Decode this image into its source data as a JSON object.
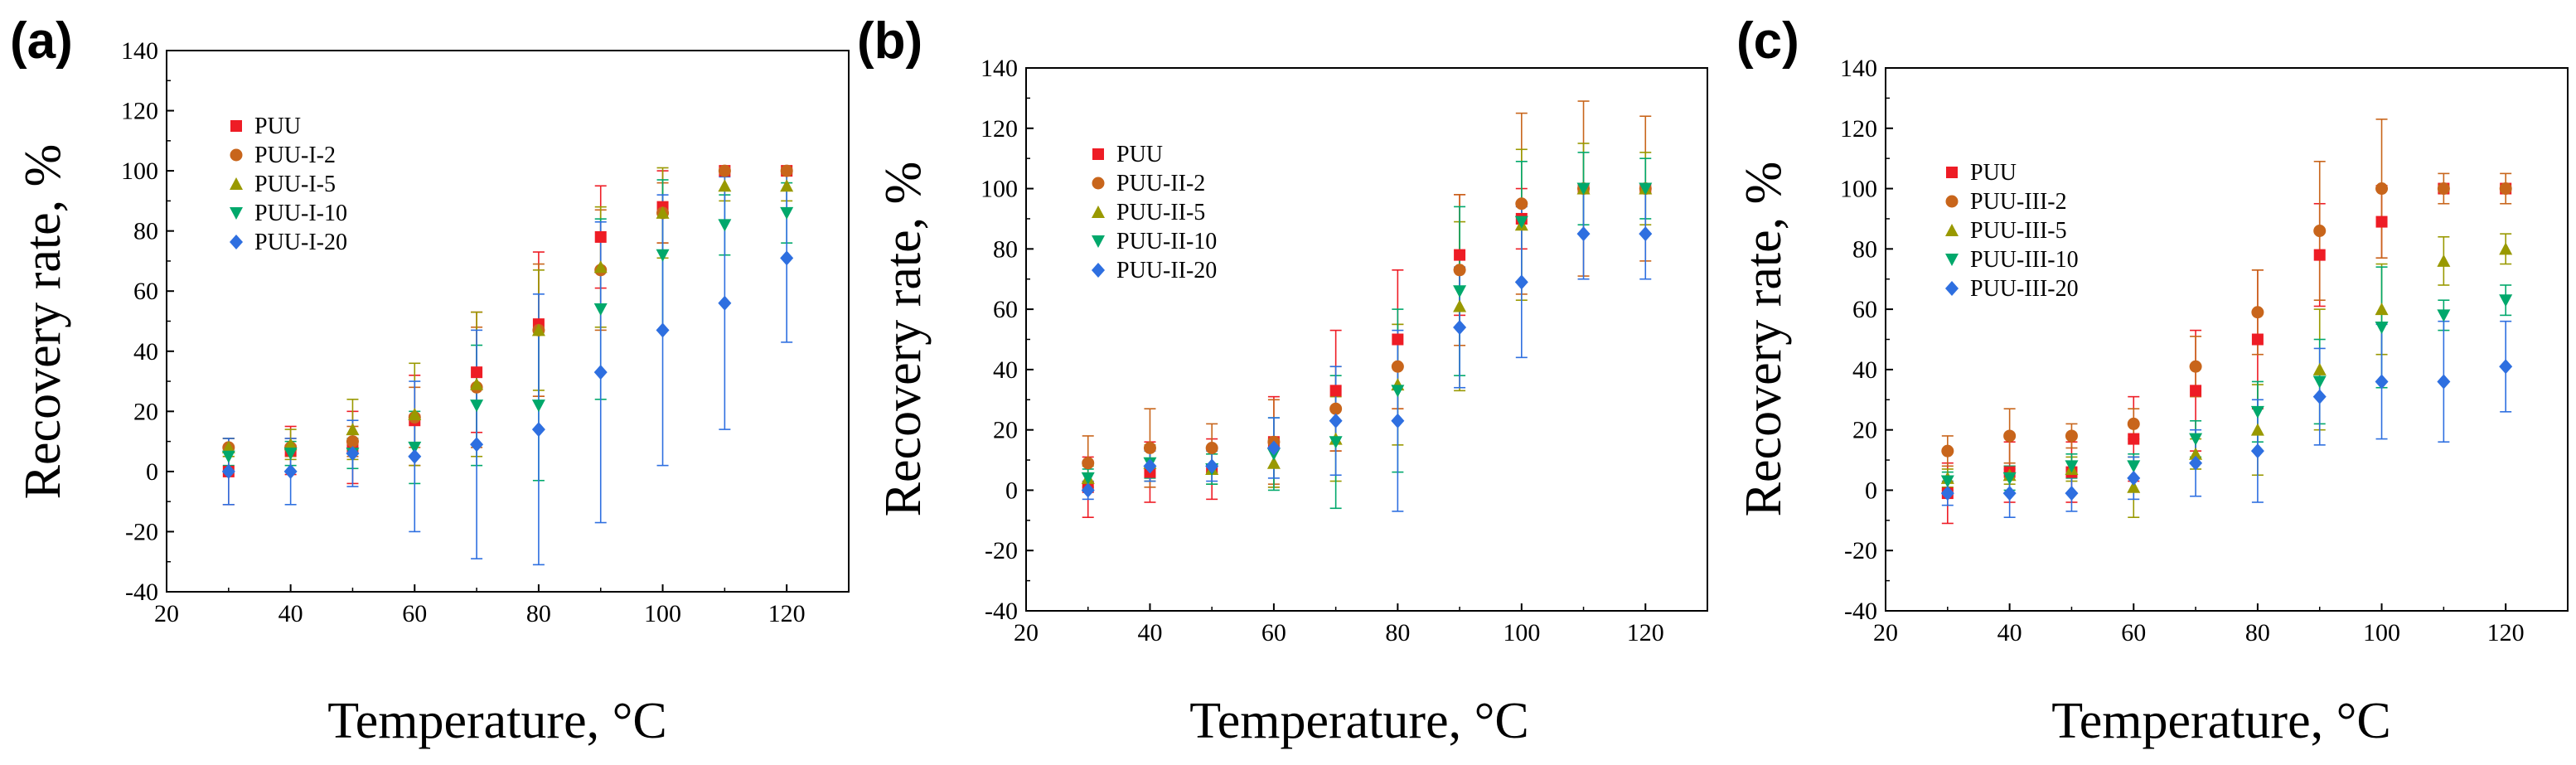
{
  "figure": {
    "series_colors": {
      "PUU": "#ee1c25",
      "PUU-2": "#c8651b",
      "PUU-5": "#999900",
      "PUU-10": "#00a86b",
      "PUU-20": "#2e6fe0"
    }
  },
  "chart_data": [
    {
      "panel": "(a)",
      "type": "scatter",
      "xlabel": "Temperature, °C",
      "ylabel": "Recovery rate, %",
      "xlim": [
        20,
        130
      ],
      "ylim": [
        -40,
        140
      ],
      "xticks": [
        20,
        40,
        60,
        80,
        100,
        120
      ],
      "yticks": [
        -40,
        -20,
        0,
        20,
        40,
        60,
        80,
        100,
        120,
        140
      ],
      "x": [
        30,
        40,
        50,
        60,
        70,
        80,
        90,
        100,
        110,
        120
      ],
      "legend_position": "upper-left",
      "series": [
        {
          "name": "PUU",
          "marker": "square",
          "color": "#ee1c25",
          "values": [
            0,
            7,
            8,
            17,
            33,
            49,
            78,
            88,
            100,
            100
          ],
          "errors": [
            11,
            8,
            12,
            15,
            20,
            24,
            17,
            12,
            0,
            0
          ]
        },
        {
          "name": "PUU-I-2",
          "marker": "circle",
          "color": "#c8651b",
          "values": [
            8,
            8,
            10,
            18,
            28,
            47,
            67,
            86,
            100,
            100
          ],
          "errors": [
            3,
            3,
            5,
            10,
            20,
            22,
            20,
            10,
            0,
            0
          ]
        },
        {
          "name": "PUU-I-5",
          "marker": "triangle-up",
          "color": "#999900",
          "values": [
            8,
            9,
            14,
            19,
            29,
            47,
            68,
            86,
            95,
            95
          ],
          "errors": [
            3,
            5,
            10,
            17,
            24,
            20,
            20,
            15,
            5,
            5
          ]
        },
        {
          "name": "PUU-I-10",
          "marker": "triangle-down",
          "color": "#00a86b",
          "values": [
            5,
            6,
            6,
            8,
            22,
            22,
            54,
            72,
            82,
            86
          ],
          "errors": [
            3,
            4,
            5,
            12,
            20,
            25,
            30,
            25,
            10,
            10
          ]
        },
        {
          "name": "PUU-I-20",
          "marker": "diamond",
          "color": "#2e6fe0",
          "values": [
            0,
            0,
            6,
            5,
            9,
            14,
            33,
            47,
            56,
            71
          ],
          "errors": [
            11,
            11,
            11,
            25,
            38,
            45,
            50,
            45,
            42,
            28
          ]
        }
      ]
    },
    {
      "panel": "(b)",
      "type": "scatter",
      "xlabel": "Temperature, °C",
      "ylabel": "Recovery rate, %",
      "xlim": [
        20,
        130
      ],
      "ylim": [
        -40,
        140
      ],
      "xticks": [
        20,
        40,
        60,
        80,
        100,
        120
      ],
      "yticks": [
        -40,
        -20,
        0,
        20,
        40,
        60,
        80,
        100,
        120,
        140
      ],
      "x": [
        30,
        40,
        50,
        60,
        70,
        80,
        90,
        100,
        110,
        120
      ],
      "legend_position": "upper-left",
      "series": [
        {
          "name": "PUU",
          "marker": "square",
          "color": "#ee1c25",
          "values": [
            1,
            6,
            7,
            16,
            33,
            50,
            78,
            90,
            100,
            100
          ],
          "errors": [
            10,
            10,
            10,
            15,
            20,
            23,
            20,
            10,
            0,
            0
          ]
        },
        {
          "name": "PUU-II-2",
          "marker": "circle",
          "color": "#c8651b",
          "values": [
            9,
            14,
            14,
            16,
            27,
            41,
            73,
            95,
            100,
            100
          ],
          "errors": [
            9,
            13,
            8,
            14,
            14,
            14,
            25,
            30,
            29,
            24
          ]
        },
        {
          "name": "PUU-II-5",
          "marker": "triangle-up",
          "color": "#999900",
          "values": [
            4,
            9,
            7,
            9,
            17,
            35,
            61,
            88,
            100,
            100
          ],
          "errors": [
            4,
            6,
            5,
            8,
            14,
            20,
            28,
            25,
            15,
            12
          ]
        },
        {
          "name": "PUU-II-10",
          "marker": "triangle-down",
          "color": "#00a86b",
          "values": [
            4,
            9,
            7,
            12,
            16,
            33,
            66,
            89,
            100,
            100
          ],
          "errors": [
            3,
            5,
            5,
            12,
            22,
            27,
            28,
            20,
            12,
            10
          ]
        },
        {
          "name": "PUU-II-20",
          "marker": "diamond",
          "color": "#2e6fe0",
          "values": [
            0,
            8,
            8,
            14,
            23,
            23,
            54,
            69,
            85,
            85
          ],
          "errors": [
            3,
            5,
            5,
            10,
            18,
            30,
            20,
            25,
            15,
            15
          ]
        }
      ]
    },
    {
      "panel": "(c)",
      "type": "scatter",
      "xlabel": "Temperature, °C",
      "ylabel": "Recovery rate, %",
      "xlim": [
        20,
        130
      ],
      "ylim": [
        -40,
        140
      ],
      "xticks": [
        20,
        40,
        60,
        80,
        100,
        120
      ],
      "yticks": [
        -40,
        -20,
        0,
        20,
        40,
        60,
        80,
        100,
        120,
        140
      ],
      "x": [
        30,
        40,
        50,
        60,
        70,
        80,
        90,
        100,
        110,
        120
      ],
      "legend_position": "upper-left",
      "series": [
        {
          "name": "PUU",
          "marker": "square",
          "color": "#ee1c25",
          "values": [
            -1,
            6,
            6,
            17,
            33,
            50,
            78,
            89,
            100,
            100
          ],
          "errors": [
            10,
            10,
            10,
            14,
            20,
            23,
            17,
            12,
            0,
            0
          ]
        },
        {
          "name": "PUU-III-2",
          "marker": "circle",
          "color": "#c8651b",
          "values": [
            13,
            18,
            18,
            22,
            41,
            59,
            86,
            100,
            100,
            100
          ],
          "errors": [
            5,
            9,
            4,
            5,
            10,
            14,
            23,
            23,
            5,
            5
          ]
        },
        {
          "name": "PUU-III-5",
          "marker": "triangle-up",
          "color": "#999900",
          "values": [
            4,
            5,
            7,
            1,
            12,
            20,
            40,
            60,
            76,
            80
          ],
          "errors": [
            3,
            3,
            4,
            10,
            5,
            15,
            20,
            15,
            8,
            5
          ]
        },
        {
          "name": "PUU-III-10",
          "marker": "triangle-down",
          "color": "#00a86b",
          "values": [
            3,
            4,
            8,
            8,
            17,
            26,
            36,
            54,
            58,
            63
          ],
          "errors": [
            3,
            4,
            4,
            4,
            6,
            10,
            14,
            20,
            5,
            5
          ]
        },
        {
          "name": "PUU-III-20",
          "marker": "diamond",
          "color": "#2e6fe0",
          "values": [
            -1,
            -1,
            -1,
            4,
            9,
            13,
            31,
            36,
            36,
            41
          ],
          "errors": [
            4,
            8,
            6,
            7,
            11,
            17,
            16,
            19,
            20,
            15
          ]
        }
      ]
    }
  ]
}
